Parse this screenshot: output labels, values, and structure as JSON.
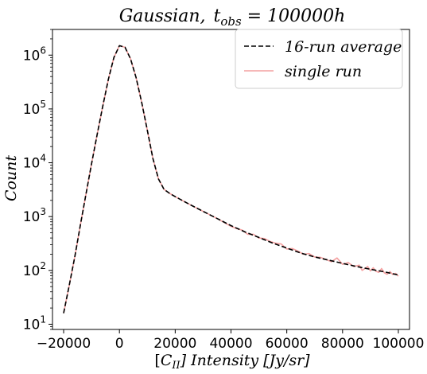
{
  "chart_data": {
    "type": "line",
    "title": "Gaussian, t_obs = 100000h",
    "title_parts": {
      "main": "Gaussian,",
      "t": "t",
      "sub": "obs",
      "rest": " = 100000h"
    },
    "xlabel": "[C_II] Intensity [Jy/sr]",
    "xlabel_parts": {
      "open": "[",
      "c": "C",
      "sub": "II",
      "rest": "] Intensity [Jy/sr]"
    },
    "ylabel": "Count",
    "xlim": [
      -24000,
      104000
    ],
    "ylim": [
      8,
      3000000
    ],
    "yscale": "log",
    "xticks": [
      -20000,
      0,
      20000,
      40000,
      60000,
      80000,
      100000
    ],
    "xtick_labels": [
      "−20000",
      "0",
      "20000",
      "40000",
      "60000",
      "80000",
      "100000"
    ],
    "yticks": [
      10,
      100,
      1000,
      10000,
      100000,
      1000000
    ],
    "ytick_labels": [
      {
        "base": "10",
        "exp": "1"
      },
      {
        "base": "10",
        "exp": "2"
      },
      {
        "base": "10",
        "exp": "3"
      },
      {
        "base": "10",
        "exp": "4"
      },
      {
        "base": "10",
        "exp": "5"
      },
      {
        "base": "10",
        "exp": "6"
      }
    ],
    "legend_position": "top-right",
    "series": [
      {
        "name": "16-run average",
        "color": "#000000",
        "style": "dashed",
        "x": [
          -20000,
          -18000,
          -16000,
          -14000,
          -12000,
          -10000,
          -8000,
          -6000,
          -4000,
          -2000,
          0,
          2000,
          4000,
          6000,
          8000,
          10000,
          12000,
          14000,
          16000,
          18000,
          20000,
          25000,
          30000,
          35000,
          40000,
          45000,
          50000,
          55000,
          60000,
          65000,
          70000,
          75000,
          80000,
          85000,
          90000,
          95000,
          100000
        ],
        "y": [
          16,
          52,
          180,
          700,
          2600,
          9500,
          33000,
          110000,
          350000,
          900000,
          1500000,
          1400000,
          850000,
          380000,
          130000,
          40000,
          12000,
          5000,
          3200,
          2700,
          2350,
          1700,
          1250,
          920,
          680,
          520,
          410,
          320,
          260,
          210,
          178,
          155,
          135,
          118,
          105,
          94,
          82
        ]
      },
      {
        "name": "single run",
        "color": "#f4a0a0",
        "style": "solid",
        "x": [
          -20000,
          -18000,
          -16000,
          -14000,
          -12000,
          -10000,
          -8000,
          -6000,
          -4000,
          -2000,
          0,
          2000,
          4000,
          6000,
          8000,
          10000,
          12000,
          14000,
          16000,
          18000,
          20000,
          25000,
          30000,
          35000,
          40000,
          42000,
          44000,
          46000,
          48000,
          50000,
          52000,
          54000,
          56000,
          58000,
          60000,
          62000,
          64000,
          66000,
          68000,
          70000,
          72000,
          74000,
          76000,
          78000,
          80000,
          82000,
          84000,
          86000,
          87000,
          88000,
          89000,
          90000,
          91000,
          92000,
          93000,
          94000,
          95000,
          96000,
          97000,
          98000,
          99000,
          100000
        ],
        "y": [
          16,
          52,
          180,
          700,
          2600,
          9500,
          33000,
          110000,
          350000,
          900000,
          1500000,
          1400000,
          850000,
          380000,
          130000,
          40000,
          12000,
          5000,
          3200,
          2700,
          2350,
          1700,
          1250,
          920,
          660,
          600,
          560,
          470,
          470,
          400,
          390,
          345,
          320,
          310,
          250,
          255,
          228,
          200,
          205,
          178,
          175,
          160,
          145,
          170,
          130,
          140,
          118,
          125,
          100,
          108,
          118,
          98,
          112,
          96,
          92,
          108,
          90,
          85,
          95,
          84,
          88,
          78
        ]
      }
    ]
  }
}
